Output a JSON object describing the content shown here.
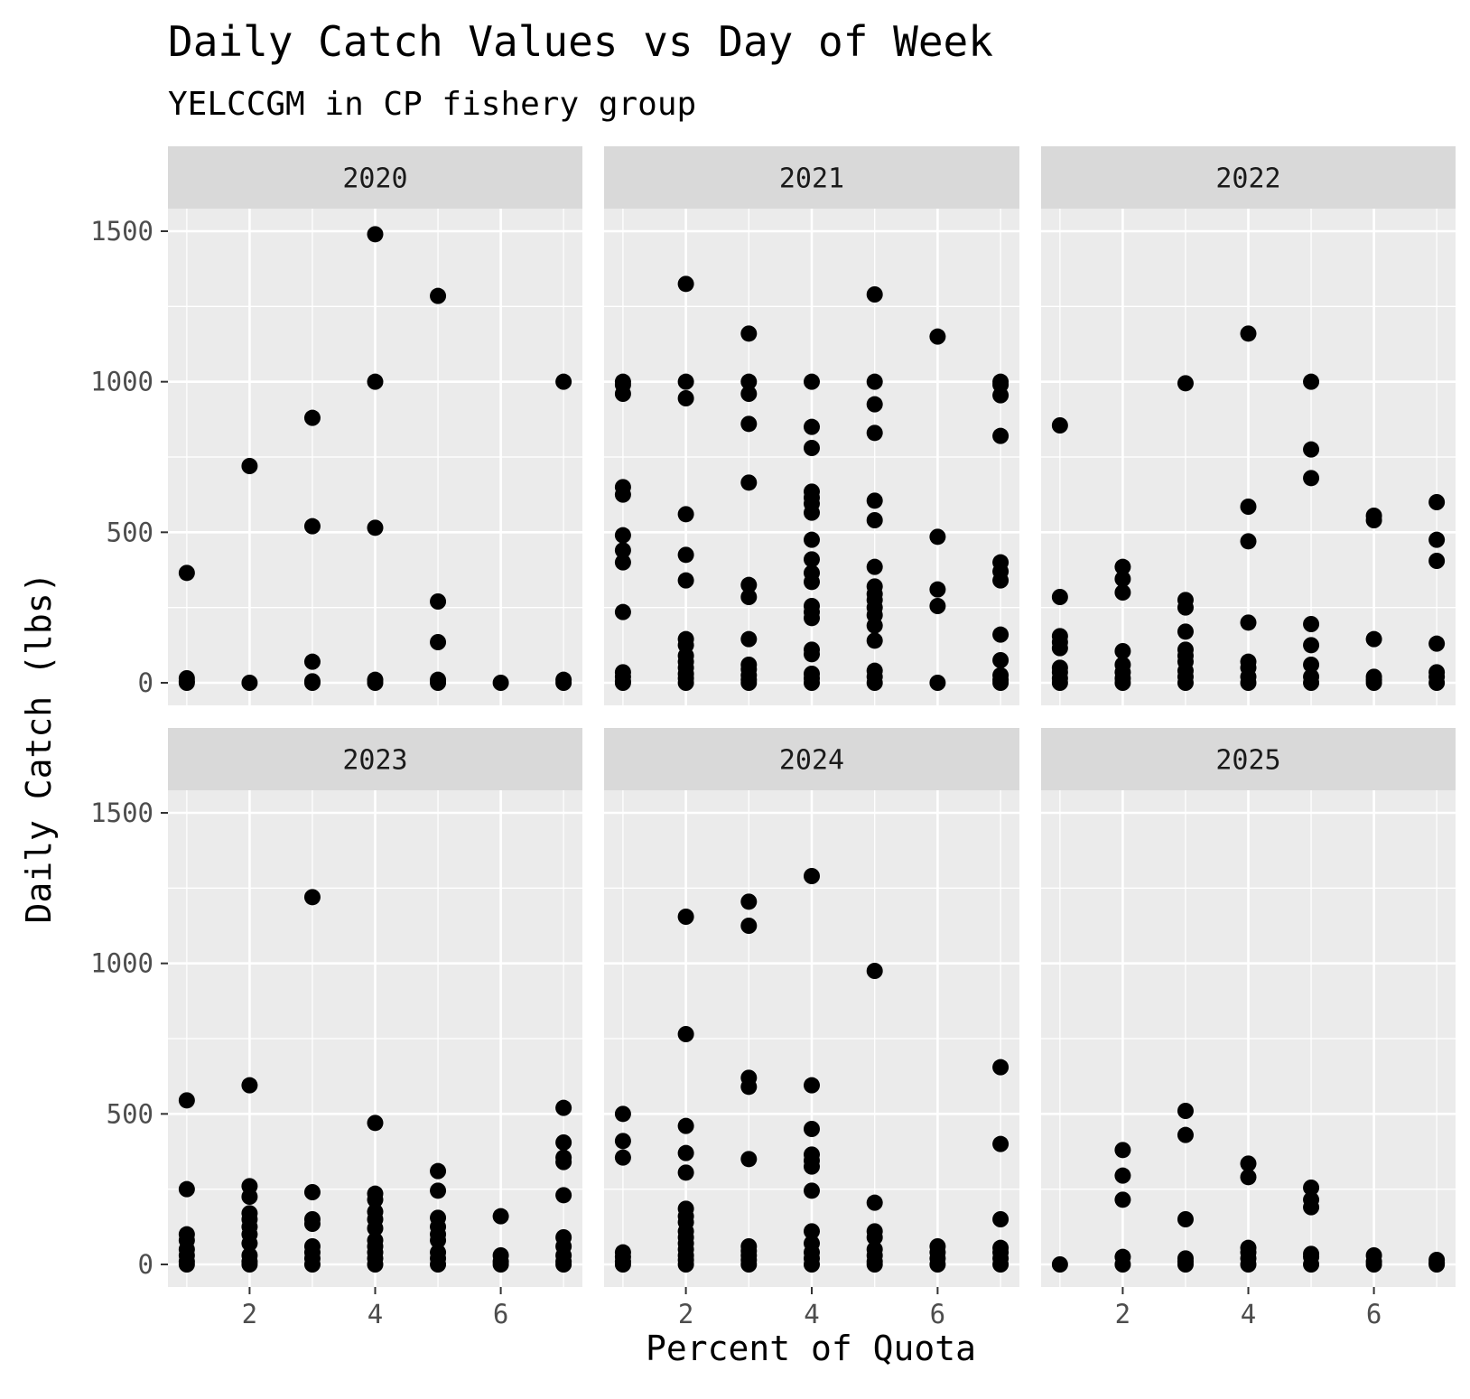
{
  "chart_data": {
    "type": "scatter",
    "title": "Daily Catch Values vs Day of Week",
    "subtitle": "YELCCGM in CP fishery group",
    "xlabel": "Percent of Quota",
    "ylabel": "Daily Catch (lbs)",
    "xlim": [
      0.7,
      7.3
    ],
    "ylim": [
      -75,
      1575
    ],
    "x_ticks": [
      2,
      4,
      6
    ],
    "y_ticks": [
      0,
      500,
      1000,
      1500
    ],
    "grid": true,
    "facets": [
      {
        "label": "2020",
        "points": [
          [
            1,
            365
          ],
          [
            1,
            15
          ],
          [
            1,
            5
          ],
          [
            1,
            0
          ],
          [
            2,
            720
          ],
          [
            2,
            0
          ],
          [
            3,
            880
          ],
          [
            3,
            520
          ],
          [
            3,
            70
          ],
          [
            3,
            5
          ],
          [
            3,
            0
          ],
          [
            4,
            1490
          ],
          [
            4,
            1000
          ],
          [
            4,
            515
          ],
          [
            4,
            10
          ],
          [
            4,
            0
          ],
          [
            5,
            1285
          ],
          [
            5,
            270
          ],
          [
            5,
            135
          ],
          [
            5,
            10
          ],
          [
            5,
            0
          ],
          [
            6,
            0
          ],
          [
            7,
            1000
          ],
          [
            7,
            10
          ],
          [
            7,
            0
          ]
        ]
      },
      {
        "label": "2021",
        "points": [
          [
            1,
            1000
          ],
          [
            1,
            990
          ],
          [
            1,
            960
          ],
          [
            1,
            650
          ],
          [
            1,
            625
          ],
          [
            1,
            490
          ],
          [
            1,
            440
          ],
          [
            1,
            400
          ],
          [
            1,
            235
          ],
          [
            1,
            35
          ],
          [
            1,
            20
          ],
          [
            1,
            5
          ],
          [
            1,
            0
          ],
          [
            2,
            1325
          ],
          [
            2,
            1000
          ],
          [
            2,
            945
          ],
          [
            2,
            560
          ],
          [
            2,
            425
          ],
          [
            2,
            340
          ],
          [
            2,
            145
          ],
          [
            2,
            125
          ],
          [
            2,
            90
          ],
          [
            2,
            70
          ],
          [
            2,
            50
          ],
          [
            2,
            30
          ],
          [
            2,
            15
          ],
          [
            2,
            0
          ],
          [
            3,
            1160
          ],
          [
            3,
            1000
          ],
          [
            3,
            960
          ],
          [
            3,
            860
          ],
          [
            3,
            665
          ],
          [
            3,
            325
          ],
          [
            3,
            285
          ],
          [
            3,
            145
          ],
          [
            3,
            60
          ],
          [
            3,
            45
          ],
          [
            3,
            25
          ],
          [
            3,
            10
          ],
          [
            3,
            0
          ],
          [
            4,
            1000
          ],
          [
            4,
            850
          ],
          [
            4,
            780
          ],
          [
            4,
            635
          ],
          [
            4,
            615
          ],
          [
            4,
            595
          ],
          [
            4,
            565
          ],
          [
            4,
            475
          ],
          [
            4,
            410
          ],
          [
            4,
            365
          ],
          [
            4,
            335
          ],
          [
            4,
            255
          ],
          [
            4,
            235
          ],
          [
            4,
            215
          ],
          [
            4,
            110
          ],
          [
            4,
            95
          ],
          [
            4,
            30
          ],
          [
            4,
            15
          ],
          [
            4,
            0
          ],
          [
            5,
            1290
          ],
          [
            5,
            1000
          ],
          [
            5,
            925
          ],
          [
            5,
            830
          ],
          [
            5,
            605
          ],
          [
            5,
            540
          ],
          [
            5,
            385
          ],
          [
            5,
            320
          ],
          [
            5,
            295
          ],
          [
            5,
            275
          ],
          [
            5,
            250
          ],
          [
            5,
            225
          ],
          [
            5,
            190
          ],
          [
            5,
            140
          ],
          [
            5,
            40
          ],
          [
            5,
            20
          ],
          [
            5,
            0
          ],
          [
            6,
            1150
          ],
          [
            6,
            485
          ],
          [
            6,
            310
          ],
          [
            6,
            255
          ],
          [
            6,
            0
          ],
          [
            7,
            1000
          ],
          [
            7,
            990
          ],
          [
            7,
            955
          ],
          [
            7,
            820
          ],
          [
            7,
            400
          ],
          [
            7,
            370
          ],
          [
            7,
            340
          ],
          [
            7,
            160
          ],
          [
            7,
            75
          ],
          [
            7,
            25
          ],
          [
            7,
            10
          ],
          [
            7,
            0
          ]
        ]
      },
      {
        "label": "2022",
        "points": [
          [
            1,
            855
          ],
          [
            1,
            285
          ],
          [
            1,
            155
          ],
          [
            1,
            135
          ],
          [
            1,
            115
          ],
          [
            1,
            50
          ],
          [
            1,
            35
          ],
          [
            1,
            15
          ],
          [
            1,
            0
          ],
          [
            2,
            385
          ],
          [
            2,
            345
          ],
          [
            2,
            300
          ],
          [
            2,
            105
          ],
          [
            2,
            60
          ],
          [
            2,
            35
          ],
          [
            2,
            15
          ],
          [
            2,
            0
          ],
          [
            3,
            995
          ],
          [
            3,
            275
          ],
          [
            3,
            250
          ],
          [
            3,
            170
          ],
          [
            3,
            110
          ],
          [
            3,
            90
          ],
          [
            3,
            70
          ],
          [
            3,
            40
          ],
          [
            3,
            20
          ],
          [
            3,
            0
          ],
          [
            4,
            1160
          ],
          [
            4,
            585
          ],
          [
            4,
            470
          ],
          [
            4,
            200
          ],
          [
            4,
            70
          ],
          [
            4,
            50
          ],
          [
            4,
            20
          ],
          [
            4,
            0
          ],
          [
            5,
            1000
          ],
          [
            5,
            775
          ],
          [
            5,
            680
          ],
          [
            5,
            195
          ],
          [
            5,
            125
          ],
          [
            5,
            60
          ],
          [
            5,
            20
          ],
          [
            5,
            0
          ],
          [
            6,
            555
          ],
          [
            6,
            540
          ],
          [
            6,
            145
          ],
          [
            6,
            20
          ],
          [
            6,
            10
          ],
          [
            6,
            0
          ],
          [
            7,
            600
          ],
          [
            7,
            475
          ],
          [
            7,
            405
          ],
          [
            7,
            130
          ],
          [
            7,
            35
          ],
          [
            7,
            20
          ],
          [
            7,
            0
          ]
        ]
      },
      {
        "label": "2023",
        "points": [
          [
            1,
            545
          ],
          [
            1,
            250
          ],
          [
            1,
            100
          ],
          [
            1,
            80
          ],
          [
            1,
            50
          ],
          [
            1,
            30
          ],
          [
            1,
            10
          ],
          [
            1,
            0
          ],
          [
            2,
            595
          ],
          [
            2,
            260
          ],
          [
            2,
            225
          ],
          [
            2,
            170
          ],
          [
            2,
            150
          ],
          [
            2,
            125
          ],
          [
            2,
            100
          ],
          [
            2,
            70
          ],
          [
            2,
            30
          ],
          [
            2,
            10
          ],
          [
            2,
            0
          ],
          [
            3,
            1220
          ],
          [
            3,
            240
          ],
          [
            3,
            150
          ],
          [
            3,
            135
          ],
          [
            3,
            60
          ],
          [
            3,
            40
          ],
          [
            3,
            20
          ],
          [
            3,
            0
          ],
          [
            4,
            470
          ],
          [
            4,
            235
          ],
          [
            4,
            215
          ],
          [
            4,
            175
          ],
          [
            4,
            150
          ],
          [
            4,
            120
          ],
          [
            4,
            80
          ],
          [
            4,
            60
          ],
          [
            4,
            40
          ],
          [
            4,
            20
          ],
          [
            4,
            0
          ],
          [
            5,
            310
          ],
          [
            5,
            245
          ],
          [
            5,
            155
          ],
          [
            5,
            125
          ],
          [
            5,
            100
          ],
          [
            5,
            80
          ],
          [
            5,
            40
          ],
          [
            5,
            20
          ],
          [
            5,
            0
          ],
          [
            6,
            160
          ],
          [
            6,
            30
          ],
          [
            6,
            10
          ],
          [
            6,
            0
          ],
          [
            7,
            520
          ],
          [
            7,
            405
          ],
          [
            7,
            355
          ],
          [
            7,
            340
          ],
          [
            7,
            230
          ],
          [
            7,
            90
          ],
          [
            7,
            60
          ],
          [
            7,
            30
          ],
          [
            7,
            10
          ],
          [
            7,
            0
          ]
        ]
      },
      {
        "label": "2024",
        "points": [
          [
            1,
            500
          ],
          [
            1,
            410
          ],
          [
            1,
            355
          ],
          [
            1,
            40
          ],
          [
            1,
            25
          ],
          [
            1,
            10
          ],
          [
            1,
            0
          ],
          [
            2,
            1155
          ],
          [
            2,
            765
          ],
          [
            2,
            460
          ],
          [
            2,
            370
          ],
          [
            2,
            305
          ],
          [
            2,
            185
          ],
          [
            2,
            160
          ],
          [
            2,
            140
          ],
          [
            2,
            110
          ],
          [
            2,
            90
          ],
          [
            2,
            70
          ],
          [
            2,
            50
          ],
          [
            2,
            30
          ],
          [
            2,
            15
          ],
          [
            2,
            0
          ],
          [
            3,
            1205
          ],
          [
            3,
            1125
          ],
          [
            3,
            620
          ],
          [
            3,
            590
          ],
          [
            3,
            350
          ],
          [
            3,
            60
          ],
          [
            3,
            45
          ],
          [
            3,
            30
          ],
          [
            3,
            15
          ],
          [
            3,
            0
          ],
          [
            4,
            1290
          ],
          [
            4,
            595
          ],
          [
            4,
            450
          ],
          [
            4,
            365
          ],
          [
            4,
            345
          ],
          [
            4,
            325
          ],
          [
            4,
            245
          ],
          [
            4,
            110
          ],
          [
            4,
            70
          ],
          [
            4,
            40
          ],
          [
            4,
            20
          ],
          [
            4,
            0
          ],
          [
            5,
            975
          ],
          [
            5,
            205
          ],
          [
            5,
            110
          ],
          [
            5,
            90
          ],
          [
            5,
            50
          ],
          [
            5,
            30
          ],
          [
            5,
            10
          ],
          [
            5,
            0
          ],
          [
            6,
            60
          ],
          [
            6,
            40
          ],
          [
            6,
            20
          ],
          [
            6,
            0
          ],
          [
            7,
            655
          ],
          [
            7,
            400
          ],
          [
            7,
            150
          ],
          [
            7,
            55
          ],
          [
            7,
            40
          ],
          [
            7,
            20
          ],
          [
            7,
            0
          ]
        ]
      },
      {
        "label": "2025",
        "points": [
          [
            1,
            0
          ],
          [
            2,
            380
          ],
          [
            2,
            295
          ],
          [
            2,
            215
          ],
          [
            2,
            25
          ],
          [
            2,
            0
          ],
          [
            3,
            510
          ],
          [
            3,
            430
          ],
          [
            3,
            150
          ],
          [
            3,
            20
          ],
          [
            3,
            10
          ],
          [
            3,
            0
          ],
          [
            4,
            335
          ],
          [
            4,
            290
          ],
          [
            4,
            55
          ],
          [
            4,
            40
          ],
          [
            4,
            20
          ],
          [
            4,
            0
          ],
          [
            5,
            255
          ],
          [
            5,
            215
          ],
          [
            5,
            190
          ],
          [
            5,
            35
          ],
          [
            5,
            25
          ],
          [
            5,
            0
          ],
          [
            6,
            30
          ],
          [
            6,
            10
          ],
          [
            6,
            0
          ],
          [
            7,
            15
          ],
          [
            7,
            5
          ],
          [
            7,
            0
          ]
        ]
      }
    ]
  },
  "colors": {
    "panel": "#ebebeb",
    "strip": "#d9d9d9",
    "grid_major": "#ffffff",
    "point": "#000000"
  }
}
